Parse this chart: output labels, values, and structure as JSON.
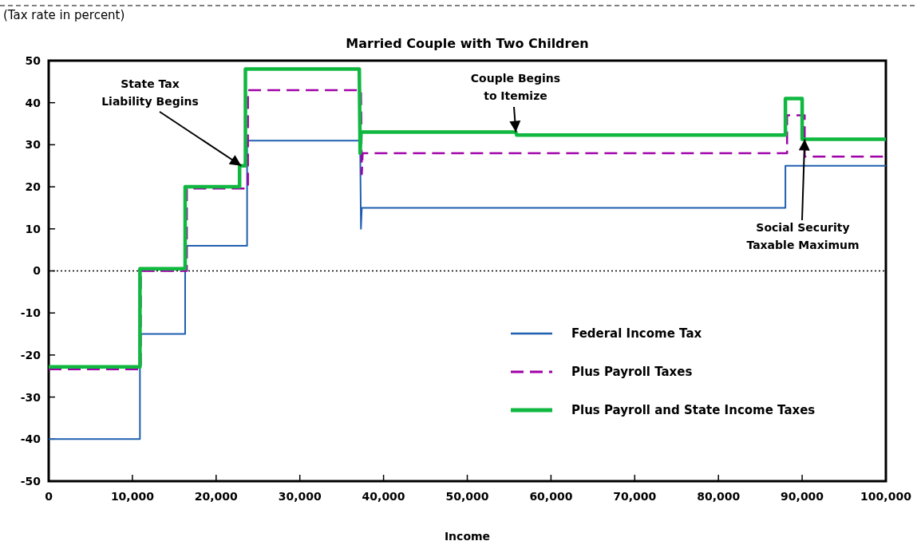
{
  "chart_data": {
    "type": "line",
    "title": "Married Couple with Two Children",
    "ylabel": "(Tax rate in percent)",
    "xlabel": "Income",
    "xlim": [
      0,
      100000
    ],
    "xticks": [
      {
        "value": 0,
        "label": "0"
      },
      {
        "value": 10000,
        "label": "10,000"
      },
      {
        "value": 20000,
        "label": "20,000"
      },
      {
        "value": 30000,
        "label": "30,000"
      },
      {
        "value": 40000,
        "label": "40,000"
      },
      {
        "value": 50000,
        "label": "50,000"
      },
      {
        "value": 60000,
        "label": "60,000"
      },
      {
        "value": 70000,
        "label": "70,000"
      },
      {
        "value": 80000,
        "label": "80,000"
      },
      {
        "value": 90000,
        "label": "90,000"
      },
      {
        "value": 100000,
        "label": "100,000"
      }
    ],
    "ylim": [
      -50,
      50
    ],
    "yticks": [
      -50,
      -40,
      -30,
      -20,
      -10,
      0,
      10,
      20,
      30,
      40,
      50
    ],
    "grid": false,
    "legend": "bottom right",
    "series": [
      {
        "name": "Federal Income Tax",
        "color": "#1f5fb0",
        "line_style": "solid",
        "x": [
          0,
          10900,
          10900,
          16300,
          16300,
          23700,
          23700,
          37200,
          37300,
          37400,
          88000,
          88000,
          100000
        ],
        "values": [
          -40,
          -40,
          -15,
          -15,
          6,
          6,
          31,
          31,
          10,
          15,
          15,
          25,
          25
        ]
      },
      {
        "name": "Plus Payroll Taxes",
        "color": "#a000a8",
        "line_style": "dashed",
        "x": [
          0,
          11000,
          11000,
          16500,
          16500,
          23800,
          23800,
          37300,
          37400,
          37500,
          88200,
          88200,
          90300,
          90300,
          100000
        ],
        "values": [
          -23.4,
          -23.4,
          0,
          0,
          19.6,
          19.6,
          43,
          43,
          23,
          28,
          28,
          37,
          37,
          27.2,
          27.2
        ]
      },
      {
        "name": "Plus Payroll and State Income Taxes",
        "color": "#10b840",
        "line_style": "solid",
        "x": [
          0,
          10900,
          10900,
          16300,
          16300,
          22800,
          22800,
          23500,
          23500,
          37100,
          37200,
          37300,
          55800,
          55900,
          88000,
          88000,
          90000,
          90000,
          100000
        ],
        "values": [
          -22.8,
          -22.8,
          0.5,
          0.5,
          20,
          20,
          25,
          25,
          48,
          48,
          28,
          33,
          33,
          32.3,
          32.3,
          41,
          41,
          31.3,
          31.3
        ]
      }
    ],
    "ref_lines": [
      {
        "axis": "y",
        "value": 0,
        "color": "#000000",
        "line_style": "dotted"
      }
    ],
    "annotations": [
      {
        "text": "State Tax Liability Begins",
        "x": 23000,
        "y": 25
      },
      {
        "text": "Couple Begins to Itemize",
        "x": 55800,
        "y": 33
      },
      {
        "text": "Social Security Taxable Maximum",
        "x": 90300,
        "y": 31.3
      }
    ]
  }
}
